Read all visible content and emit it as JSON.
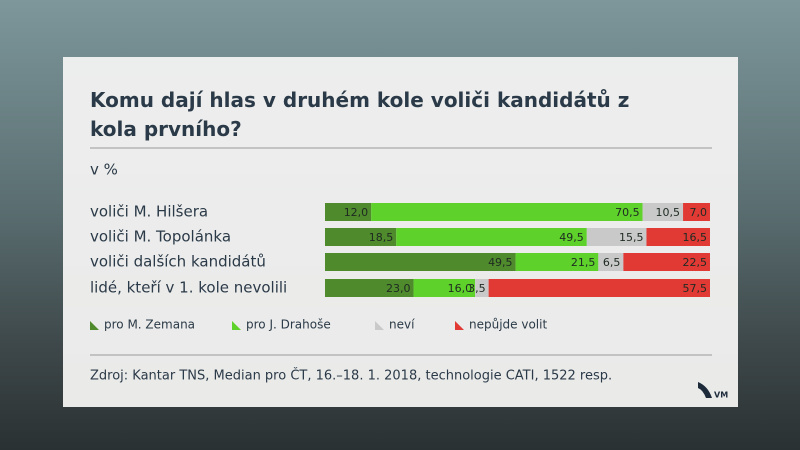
{
  "chart_data": {
    "type": "bar",
    "orientation": "horizontal",
    "stacked": true,
    "title": "Komu dají hlas v druhém kole voliči kandidátů z kola prvního?",
    "subtitle": "v %",
    "categories": [
      "voliči M. Hilšera",
      "voliči M. Topolánka",
      "voliči dalších kandidátů",
      "lidé, kteří v 1. kole nevolili"
    ],
    "series": [
      {
        "name": "pro M. Zemana",
        "color": "#4f8a2c",
        "values": [
          12.0,
          18.5,
          49.5,
          23.0
        ],
        "value_labels": [
          "12,0",
          "18,5",
          "49,5",
          "23,0"
        ]
      },
      {
        "name": "pro J. Drahoše",
        "color": "#5fd12b",
        "values": [
          70.5,
          49.5,
          21.5,
          16.0
        ],
        "value_labels": [
          "70,5",
          "49,5",
          "21,5",
          "16,0"
        ]
      },
      {
        "name": "neví",
        "color": "#c9c9c9",
        "values": [
          10.5,
          15.5,
          6.5,
          3.5
        ],
        "value_labels": [
          "10,5",
          "15,5",
          "6,5",
          "3,5"
        ]
      },
      {
        "name": "nepůjde volit",
        "color": "#e13a35",
        "values": [
          7.0,
          16.5,
          22.5,
          57.5
        ],
        "value_labels": [
          "7,0",
          "16,5",
          "22,5",
          "57,5"
        ]
      }
    ],
    "source": "Zdroj: Kantar TNS, Median pro ČT, 16.–18. 1. 2018, technologie CATI, 1522 resp.",
    "logo": "VM"
  }
}
